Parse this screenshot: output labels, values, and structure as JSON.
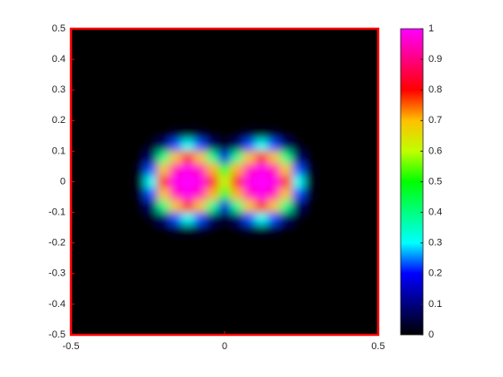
{
  "chart_data": {
    "type": "heatmap",
    "x": [
      -0.28,
      -0.24,
      -0.2,
      -0.16,
      -0.12,
      -0.08,
      -0.04,
      0,
      0.04,
      0.08,
      0.12,
      0.16,
      0.2,
      0.24,
      0.28
    ],
    "y": [
      0.2,
      0.16,
      0.12,
      0.08,
      0.04,
      0,
      -0.04,
      -0.08,
      -0.12,
      -0.16,
      -0.2
    ],
    "z": [
      [
        0,
        0,
        0,
        0,
        0,
        0,
        0,
        0,
        0,
        0,
        0,
        0,
        0,
        0,
        0
      ],
      [
        0,
        0,
        0,
        0.02,
        0.02,
        0.02,
        0,
        0,
        0,
        0.02,
        0.02,
        0.02,
        0,
        0,
        0
      ],
      [
        0,
        0.01,
        0.08,
        0.23,
        0.31,
        0.23,
        0.08,
        0.02,
        0.08,
        0.23,
        0.31,
        0.23,
        0.08,
        0.01,
        0
      ],
      [
        0,
        0.08,
        0.39,
        0.69,
        0.79,
        0.69,
        0.39,
        0.17,
        0.39,
        0.69,
        0.79,
        0.69,
        0.39,
        0.08,
        0
      ],
      [
        0.02,
        0.23,
        0.69,
        0.94,
        0.99,
        0.94,
        0.71,
        0.46,
        0.71,
        0.94,
        0.99,
        0.94,
        0.69,
        0.23,
        0.02
      ],
      [
        0.02,
        0.31,
        0.79,
        0.99,
        1,
        0.99,
        0.82,
        0.61,
        0.82,
        0.99,
        1,
        0.99,
        0.79,
        0.31,
        0.02
      ],
      [
        0.02,
        0.23,
        0.69,
        0.94,
        0.99,
        0.94,
        0.71,
        0.46,
        0.71,
        0.94,
        0.99,
        0.94,
        0.69,
        0.23,
        0.02
      ],
      [
        0,
        0.08,
        0.39,
        0.69,
        0.79,
        0.69,
        0.39,
        0.17,
        0.39,
        0.69,
        0.79,
        0.69,
        0.39,
        0.08,
        0
      ],
      [
        0,
        0.01,
        0.08,
        0.23,
        0.31,
        0.23,
        0.08,
        0.02,
        0.08,
        0.23,
        0.31,
        0.23,
        0.08,
        0.01,
        0
      ],
      [
        0,
        0,
        0,
        0.02,
        0.02,
        0.02,
        0,
        0,
        0,
        0.02,
        0.02,
        0.02,
        0,
        0,
        0
      ],
      [
        0,
        0,
        0,
        0,
        0,
        0,
        0,
        0,
        0,
        0,
        0,
        0,
        0,
        0,
        0
      ]
    ],
    "xlim": [
      -0.5,
      0.5
    ],
    "xticks": [
      -0.5,
      0,
      0.5
    ],
    "ylim": [
      -0.5,
      0.5
    ],
    "yticks": [
      -0.5,
      -0.4,
      -0.3,
      -0.2,
      -0.1,
      0,
      0.1,
      0.2,
      0.3,
      0.4,
      0.5
    ],
    "clim": [
      0,
      1
    ],
    "cticks": [
      0,
      0.1,
      0.2,
      0.3,
      0.4,
      0.5,
      0.6,
      0.7,
      0.8,
      0.9,
      1
    ],
    "colormap": [
      "#000000",
      "#00007f",
      "#0000ff",
      "#00ffff",
      "#00ff80",
      "#00ff00",
      "#c0ff00",
      "#ffc000",
      "#ff0000",
      "#ff0080",
      "#ff00ff"
    ],
    "frame_color": "#ff0000"
  }
}
